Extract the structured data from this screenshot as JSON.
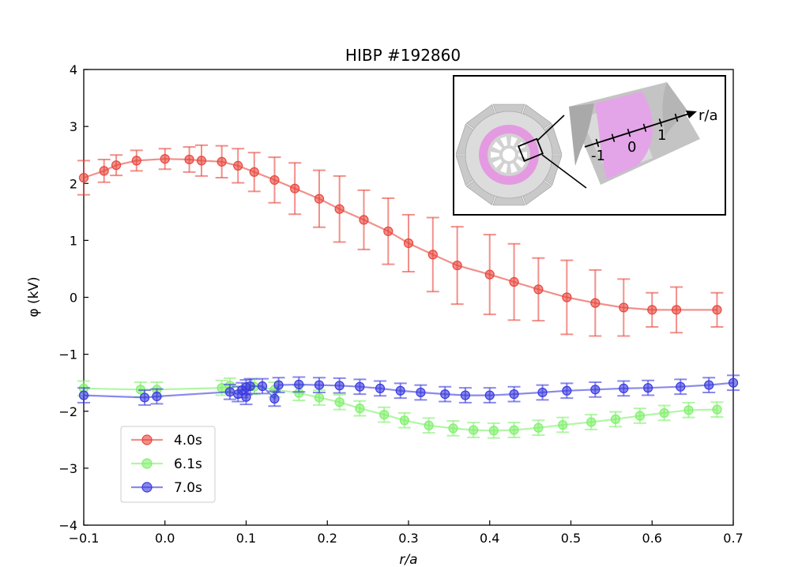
{
  "chart_data": {
    "type": "line",
    "title": "HIBP #192860",
    "xlabel": "r/a",
    "ylabel": "φ (kV)",
    "xlim": [
      -0.1,
      0.7
    ],
    "ylim": [
      -4,
      4
    ],
    "xticks": [
      -0.1,
      0.0,
      0.1,
      0.2,
      0.3,
      0.4,
      0.5,
      0.6,
      0.7
    ],
    "xtick_labels": [
      "−0.1",
      "0.0",
      "0.1",
      "0.2",
      "0.3",
      "0.4",
      "0.5",
      "0.6",
      "0.7"
    ],
    "yticks": [
      -4,
      -3,
      -2,
      -1,
      0,
      1,
      2,
      3,
      4
    ],
    "ytick_labels": [
      "−4",
      "−3",
      "−2",
      "−1",
      "0",
      "1",
      "2",
      "3",
      "4"
    ],
    "legend_position": "lower-left",
    "series": [
      {
        "name": "4.0s",
        "color": "#e8463c",
        "x": [
          -0.1,
          -0.075,
          -0.06,
          -0.035,
          0.0,
          0.03,
          0.045,
          0.07,
          0.09,
          0.11,
          0.135,
          0.16,
          0.19,
          0.215,
          0.245,
          0.275,
          0.3,
          0.33,
          0.36,
          0.4,
          0.43,
          0.46,
          0.495,
          0.53,
          0.565,
          0.6,
          0.63,
          0.68
        ],
        "y": [
          2.1,
          2.22,
          2.32,
          2.4,
          2.43,
          2.42,
          2.4,
          2.38,
          2.31,
          2.2,
          2.06,
          1.91,
          1.73,
          1.55,
          1.36,
          1.16,
          0.95,
          0.75,
          0.56,
          0.4,
          0.27,
          0.14,
          0.0,
          -0.1,
          -0.18,
          -0.22,
          -0.22,
          -0.22
        ],
        "err": [
          0.3,
          0.2,
          0.18,
          0.18,
          0.18,
          0.22,
          0.27,
          0.28,
          0.3,
          0.34,
          0.4,
          0.45,
          0.5,
          0.58,
          0.52,
          0.58,
          0.5,
          0.65,
          0.68,
          0.7,
          0.67,
          0.55,
          0.65,
          0.58,
          0.5,
          0.3,
          0.4,
          0.3
        ]
      },
      {
        "name": "6.1s",
        "color": "#7ef06a",
        "x": [
          -0.1,
          -0.03,
          -0.01,
          0.07,
          0.08,
          0.11,
          0.135,
          0.165,
          0.19,
          0.215,
          0.24,
          0.27,
          0.295,
          0.325,
          0.355,
          0.38,
          0.405,
          0.43,
          0.46,
          0.49,
          0.525,
          0.555,
          0.585,
          0.615,
          0.645,
          0.68
        ],
        "y": [
          -1.6,
          -1.62,
          -1.62,
          -1.59,
          -1.55,
          -1.57,
          -1.62,
          -1.68,
          -1.76,
          -1.84,
          -1.95,
          -2.06,
          -2.16,
          -2.25,
          -2.3,
          -2.33,
          -2.34,
          -2.33,
          -2.29,
          -2.24,
          -2.19,
          -2.14,
          -2.08,
          -2.03,
          -1.98,
          -1.97
        ]
      },
      {
        "name": "7.0s",
        "color": "#3a3ae0",
        "x": [
          -0.1,
          -0.025,
          -0.01,
          0.08,
          0.09,
          0.095,
          0.1,
          0.1,
          0.105,
          0.12,
          0.135,
          0.14,
          0.165,
          0.19,
          0.215,
          0.24,
          0.265,
          0.29,
          0.315,
          0.345,
          0.37,
          0.4,
          0.43,
          0.465,
          0.495,
          0.53,
          0.565,
          0.595,
          0.635,
          0.67,
          0.7
        ],
        "y": [
          -1.72,
          -1.76,
          -1.74,
          -1.66,
          -1.7,
          -1.63,
          -1.58,
          -1.75,
          -1.56,
          -1.56,
          -1.78,
          -1.54,
          -1.53,
          -1.54,
          -1.55,
          -1.57,
          -1.6,
          -1.64,
          -1.67,
          -1.7,
          -1.72,
          -1.72,
          -1.7,
          -1.67,
          -1.64,
          -1.62,
          -1.6,
          -1.59,
          -1.57,
          -1.54,
          -1.5
        ]
      }
    ]
  },
  "inset": {
    "axis_label": "r/a",
    "tick_labels": [
      "-1",
      "0",
      "1"
    ]
  }
}
